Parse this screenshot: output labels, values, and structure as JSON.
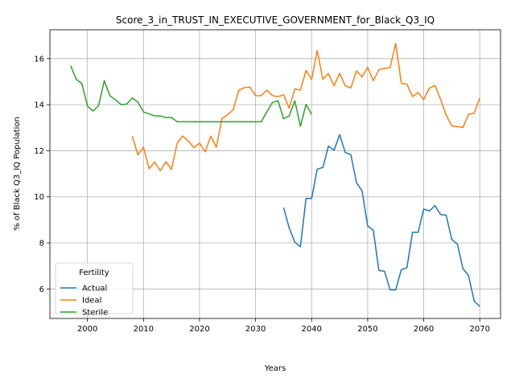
{
  "chart_data": {
    "type": "line",
    "title": "Score_3_in_TRUST_IN_EXECUTIVE_GOVERNMENT_for_Black_Q3_IQ",
    "xlabel": "Years",
    "ylabel": "% of Black Q3_IQ Population",
    "xlim": [
      1993.3,
      2073.7
    ],
    "ylim": [
      4.72,
      17.25
    ],
    "xticks": [
      2000,
      2010,
      2020,
      2030,
      2040,
      2050,
      2060,
      2070
    ],
    "yticks": [
      6,
      8,
      10,
      12,
      14,
      16
    ],
    "grid": true,
    "legend": {
      "title": "Fertility",
      "placement": "lower-left"
    },
    "series": [
      {
        "name": "Actual",
        "color": "#1f77b4",
        "x": [
          2035,
          2036,
          2037,
          2038,
          2039,
          2040,
          2041,
          2042,
          2043,
          2044,
          2045,
          2046,
          2047,
          2048,
          2049,
          2050,
          2051,
          2052,
          2053,
          2054,
          2055,
          2056,
          2057,
          2058,
          2059,
          2060,
          2061,
          2062,
          2063,
          2064,
          2065,
          2066,
          2067,
          2068,
          2069,
          2070
        ],
        "values": [
          9.53,
          8.65,
          8.03,
          7.83,
          9.93,
          9.93,
          11.2,
          11.27,
          12.2,
          12.02,
          12.7,
          11.92,
          11.83,
          10.61,
          10.26,
          8.74,
          8.55,
          6.8,
          6.77,
          5.96,
          5.96,
          6.84,
          6.92,
          8.46,
          8.46,
          9.47,
          9.38,
          9.62,
          9.23,
          9.2,
          8.15,
          7.95,
          6.88,
          6.58,
          5.47,
          5.24
        ]
      },
      {
        "name": "Ideal",
        "color": "#ff7f0e",
        "x": [
          2008,
          2009,
          2010,
          2011,
          2012,
          2013,
          2014,
          2015,
          2016,
          2017,
          2018,
          2019,
          2020,
          2021,
          2022,
          2023,
          2024,
          2025,
          2026,
          2027,
          2028,
          2029,
          2030,
          2031,
          2032,
          2033,
          2034,
          2035,
          2036,
          2037,
          2038,
          2039,
          2040,
          2041,
          2042,
          2043,
          2044,
          2045,
          2046,
          2047,
          2048,
          2049,
          2050,
          2051,
          2052,
          2053,
          2054,
          2055,
          2056,
          2057,
          2058,
          2059,
          2060,
          2061,
          2062,
          2063,
          2064,
          2065,
          2066,
          2067,
          2068,
          2069,
          2070
        ],
        "values": [
          12.63,
          11.82,
          12.15,
          11.22,
          11.51,
          11.13,
          11.52,
          11.19,
          12.32,
          12.64,
          12.42,
          12.13,
          12.33,
          11.95,
          12.63,
          12.15,
          13.4,
          13.56,
          13.78,
          14.62,
          14.74,
          14.76,
          14.39,
          14.39,
          14.63,
          14.39,
          14.35,
          14.43,
          13.84,
          14.68,
          14.63,
          15.48,
          15.1,
          16.35,
          15.1,
          15.35,
          14.82,
          15.36,
          14.82,
          14.72,
          15.47,
          15.2,
          15.62,
          15.04,
          15.52,
          15.57,
          15.61,
          16.66,
          14.93,
          14.89,
          14.35,
          14.53,
          14.22,
          14.71,
          14.83,
          14.24,
          13.54,
          13.08,
          13.05,
          13.01,
          13.58,
          13.63,
          14.3
        ]
      },
      {
        "name": "Sterile",
        "color": "#2ca02c",
        "x": [
          1997,
          1998,
          1999,
          2000,
          2001,
          2002,
          2003,
          2004,
          2005,
          2006,
          2007,
          2008,
          2009,
          2010,
          2011,
          2012,
          2013,
          2014,
          2015,
          2016,
          2017,
          2018,
          2019,
          2020,
          2021,
          2022,
          2023,
          2024,
          2025,
          2026,
          2027,
          2028,
          2029,
          2030,
          2031,
          2032,
          2033,
          2034,
          2035,
          2036,
          2037,
          2038,
          2039,
          2040
        ],
        "values": [
          15.69,
          15.1,
          14.92,
          13.94,
          13.72,
          13.96,
          15.04,
          14.39,
          14.21,
          14.0,
          14.02,
          14.29,
          14.11,
          13.68,
          13.6,
          13.51,
          13.51,
          13.44,
          13.44,
          13.26,
          13.26,
          13.26,
          13.26,
          13.26,
          13.26,
          13.26,
          13.26,
          13.26,
          13.26,
          13.26,
          13.26,
          13.26,
          13.26,
          13.26,
          13.26,
          13.68,
          14.09,
          14.17,
          13.39,
          13.51,
          14.17,
          13.06,
          14.01,
          13.58
        ]
      }
    ]
  }
}
